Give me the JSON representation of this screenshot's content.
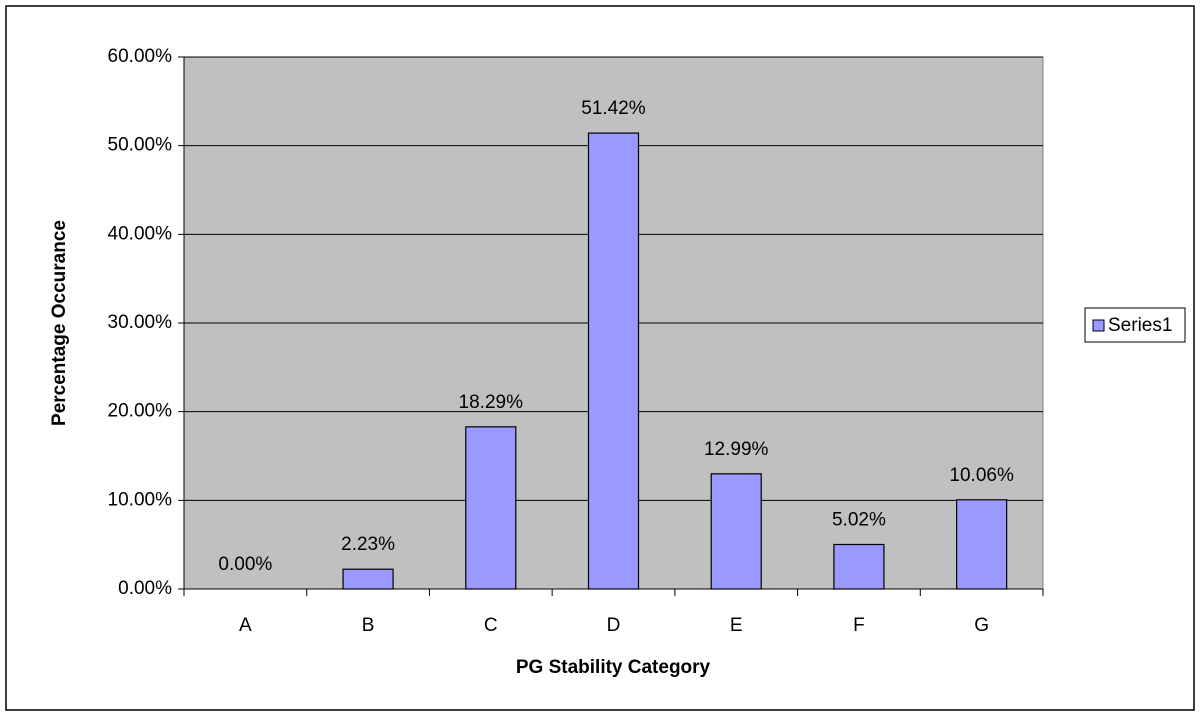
{
  "chart_data": {
    "type": "bar",
    "x_label": "PG Stability Category",
    "y_label": "Percentage Occurance",
    "categories": [
      "A",
      "B",
      "C",
      "D",
      "E",
      "F",
      "G"
    ],
    "series": [
      {
        "name": "Series1",
        "color": "#9999ff",
        "values": [
          0,
          2.23,
          18.29,
          51.42,
          12.99,
          5.02,
          10.06
        ],
        "value_labels": [
          "0.00%",
          "2.23%",
          "18.29%",
          "51.42%",
          "12.99%",
          "5.02%",
          "10.06%"
        ]
      }
    ],
    "ylim": [
      0,
      60
    ],
    "yticks": [
      {
        "value": 0,
        "label": "0.00%"
      },
      {
        "value": 10,
        "label": "10.00%"
      },
      {
        "value": 20,
        "label": "20.00%"
      },
      {
        "value": 30,
        "label": "30.00%"
      },
      {
        "value": 40,
        "label": "40.00%"
      },
      {
        "value": 50,
        "label": "50.00%"
      },
      {
        "value": 60,
        "label": "60.00%"
      }
    ],
    "grid": true,
    "legend": "right"
  }
}
